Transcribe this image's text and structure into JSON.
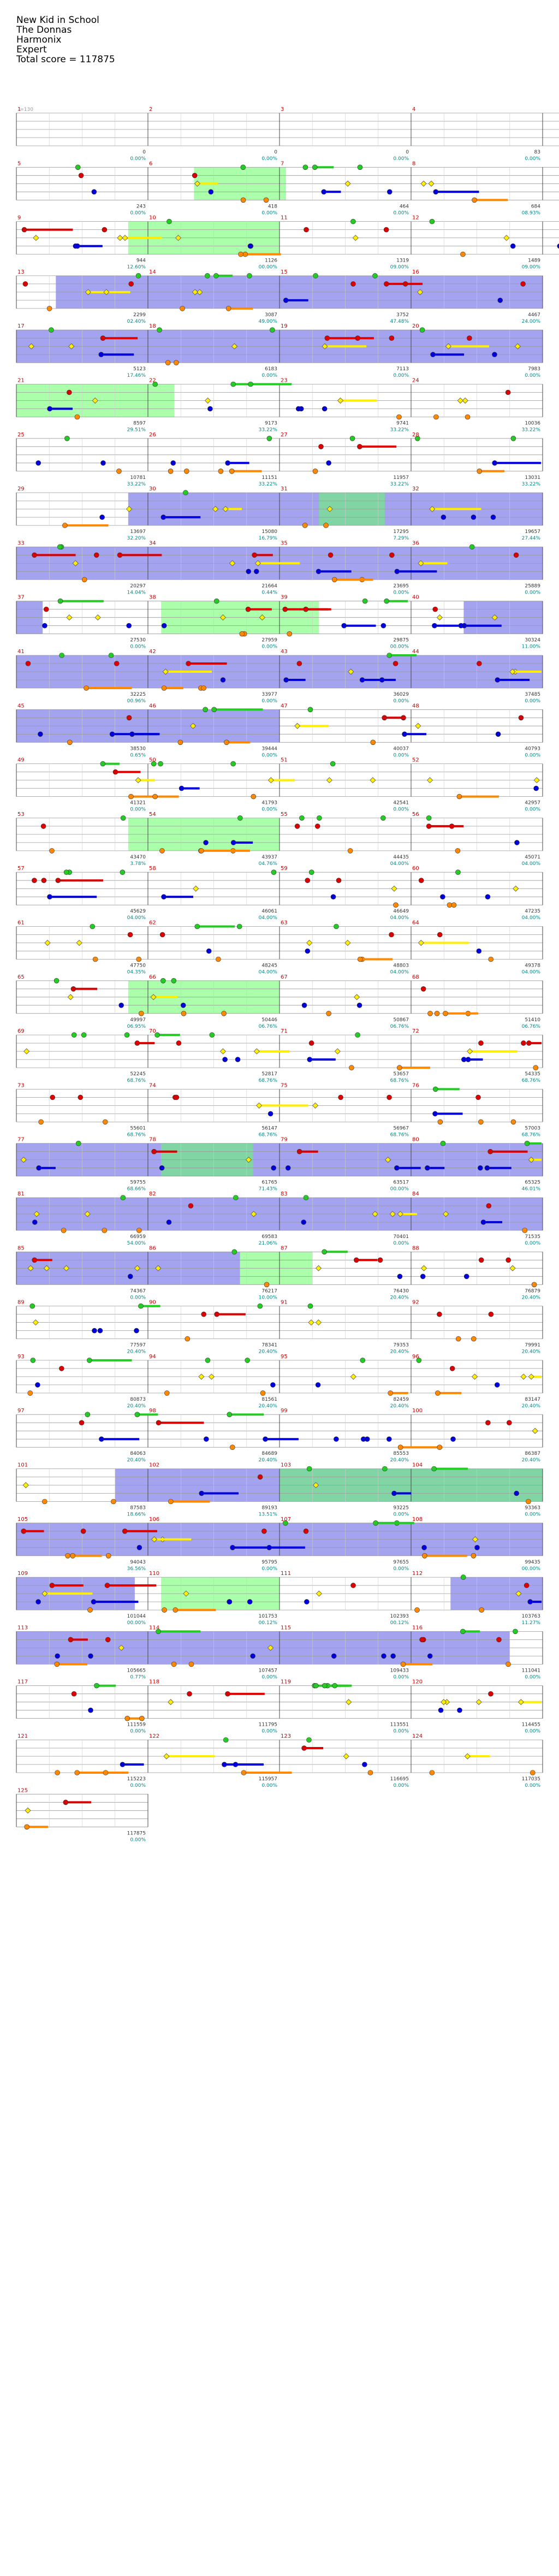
{
  "header": {
    "song_title": "New Kid in School",
    "artist": "The Donnas",
    "game": "Harmonix",
    "difficulty": "Expert",
    "total_score": "Total score = 117875"
  },
  "tempo_label": "♩=130",
  "colors": {
    "green": "#22cc22",
    "red": "#dd0000",
    "yellow": "#ffee00",
    "blue": "#0000dd",
    "orange": "#ff8800",
    "overdrive": "#3333dd",
    "solo": "#66ff66",
    "measure_number": "#cc0000",
    "score_text": "#008800",
    "percent_text": "#008888",
    "gray_text": "#999999"
  },
  "icons": [
    "star-power-note-icon",
    "gem-note-icon",
    "sustain-bar"
  ],
  "measures": [
    {
      "n": "1",
      "score": "0",
      "pct": "0.00%",
      "notes": []
    },
    {
      "n": "2",
      "score": "0",
      "pct": "0.00%",
      "notes": []
    },
    {
      "n": "3",
      "score": "0",
      "pct": "0.00%",
      "notes": []
    },
    {
      "n": "4",
      "score": "83",
      "pct": "0.00%",
      "notes": []
    },
    {
      "n": "",
      "score": "170",
      "pct": "0.00%",
      "notes": []
    },
    {
      "n": "5",
      "score": "243",
      "pct": "0.00%",
      "notes": []
    },
    {
      "n": "6",
      "score": "418",
      "pct": "0.00%",
      "notes": []
    },
    {
      "n": "7",
      "score": "464",
      "pct": "0.00%",
      "notes": []
    },
    {
      "n": "8",
      "score": "684",
      "pct": "08.93%",
      "notes": []
    },
    {
      "n": "",
      "score": "758",
      "pct": "09.90%",
      "notes": []
    },
    {
      "n": "9",
      "score": "944",
      "pct": "12.60%",
      "notes": []
    },
    {
      "n": "10",
      "score": "1126",
      "pct": "00.00%",
      "notes": []
    },
    {
      "n": "11",
      "score": "1319",
      "pct": "09.00%",
      "notes": []
    },
    {
      "n": "12",
      "score": "1489",
      "pct": "09.00%",
      "notes": []
    },
    {
      "n": "",
      "score": "1738",
      "pct": "07.00%",
      "notes": []
    },
    {
      "n": "13",
      "score": "2299",
      "pct": "02.40%",
      "notes": []
    },
    {
      "n": "14",
      "score": "3087",
      "pct": "49.00%",
      "notes": []
    },
    {
      "n": "15",
      "score": "3752",
      "pct": "47.48%",
      "notes": []
    },
    {
      "n": "16",
      "score": "4467",
      "pct": "24.00%",
      "notes": []
    },
    {
      "n": "17",
      "score": "5123",
      "pct": "17.46%",
      "notes": []
    },
    {
      "n": "18",
      "score": "6183",
      "pct": "0.00%",
      "notes": []
    },
    {
      "n": "19",
      "score": "7113",
      "pct": "0.00%",
      "notes": []
    },
    {
      "n": "20",
      "score": "7983",
      "pct": "0.00%",
      "notes": []
    },
    {
      "n": "21",
      "score": "8597",
      "pct": "29.51%",
      "notes": []
    },
    {
      "n": "22",
      "score": "9173",
      "pct": "33.22%",
      "notes": []
    },
    {
      "n": "23",
      "score": "9741",
      "pct": "33.22%",
      "notes": []
    },
    {
      "n": "24",
      "score": "10036",
      "pct": "33.22%",
      "notes": []
    },
    {
      "n": "25",
      "score": "10781",
      "pct": "33.22%",
      "notes": []
    },
    {
      "n": "26",
      "score": "11151",
      "pct": "33.22%",
      "notes": []
    },
    {
      "n": "27",
      "score": "11957",
      "pct": "33.22%",
      "notes": []
    },
    {
      "n": "28",
      "score": "13031",
      "pct": "33.22%",
      "notes": []
    },
    {
      "n": "29",
      "score": "13697",
      "pct": "32.20%",
      "notes": []
    },
    {
      "n": "30",
      "score": "15080",
      "pct": "16.79%",
      "notes": []
    },
    {
      "n": "31",
      "score": "17295",
      "pct": "7.29%",
      "notes": []
    },
    {
      "n": "32",
      "score": "19657",
      "pct": "27.44%",
      "notes": []
    },
    {
      "n": "33",
      "score": "20297",
      "pct": "14.04%",
      "notes": []
    },
    {
      "n": "34",
      "score": "21664",
      "pct": "0.44%",
      "notes": []
    },
    {
      "n": "35",
      "score": "23695",
      "pct": "0.00%",
      "notes": []
    },
    {
      "n": "36",
      "score": "25889",
      "pct": "0.00%",
      "notes": []
    },
    {
      "n": "37",
      "score": "27530",
      "pct": "0.00%",
      "notes": []
    },
    {
      "n": "38",
      "score": "27959",
      "pct": "0.00%",
      "notes": []
    },
    {
      "n": "39",
      "score": "29875",
      "pct": "00.00%",
      "notes": []
    },
    {
      "n": "40",
      "score": "30324",
      "pct": "11.00%",
      "notes": []
    },
    {
      "n": "41",
      "score": "32225",
      "pct": "00.96%",
      "notes": []
    },
    {
      "n": "42",
      "score": "33977",
      "pct": "0.00%",
      "notes": []
    },
    {
      "n": "43",
      "score": "36029",
      "pct": "0.00%",
      "notes": []
    },
    {
      "n": "44",
      "score": "37485",
      "pct": "0.00%",
      "notes": []
    },
    {
      "n": "45",
      "score": "38530",
      "pct": "0.65%",
      "notes": []
    },
    {
      "n": "46",
      "score": "39444",
      "pct": "0.00%",
      "notes": []
    },
    {
      "n": "47",
      "score": "40037",
      "pct": "0.00%",
      "notes": []
    },
    {
      "n": "48",
      "score": "40793",
      "pct": "0.00%",
      "notes": []
    },
    {
      "n": "49",
      "score": "41321",
      "pct": "0.00%",
      "notes": []
    },
    {
      "n": "50",
      "score": "41793",
      "pct": "0.00%",
      "notes": []
    },
    {
      "n": "51",
      "score": "42541",
      "pct": "0.00%",
      "notes": []
    },
    {
      "n": "52",
      "score": "42957",
      "pct": "0.00%",
      "notes": []
    },
    {
      "n": "53",
      "score": "43470",
      "pct": "3.78%",
      "notes": []
    },
    {
      "n": "54",
      "score": "43937",
      "pct": "04.76%",
      "notes": []
    },
    {
      "n": "55",
      "score": "44435",
      "pct": "04.00%",
      "notes": []
    },
    {
      "n": "56",
      "score": "45071",
      "pct": "04.00%",
      "notes": []
    },
    {
      "n": "57",
      "score": "45629",
      "pct": "04.00%",
      "notes": []
    },
    {
      "n": "58",
      "score": "46061",
      "pct": "04.00%",
      "notes": []
    },
    {
      "n": "59",
      "score": "46649",
      "pct": "04.00%",
      "notes": []
    },
    {
      "n": "60",
      "score": "47235",
      "pct": "04.00%",
      "notes": []
    },
    {
      "n": "61",
      "score": "47750",
      "pct": "04.35%",
      "notes": []
    },
    {
      "n": "62",
      "score": "48245",
      "pct": "04.00%",
      "notes": []
    },
    {
      "n": "63",
      "score": "48803",
      "pct": "04.00%",
      "notes": []
    },
    {
      "n": "64",
      "score": "49378",
      "pct": "04.00%",
      "notes": []
    },
    {
      "n": "65",
      "score": "49997",
      "pct": "06.95%",
      "notes": []
    },
    {
      "n": "66",
      "score": "50446",
      "pct": "06.76%",
      "notes": []
    },
    {
      "n": "67",
      "score": "50867",
      "pct": "06.76%",
      "notes": []
    },
    {
      "n": "68",
      "score": "51410",
      "pct": "06.76%",
      "notes": []
    },
    {
      "n": "69",
      "score": "52245",
      "pct": "68.76%",
      "notes": []
    },
    {
      "n": "70",
      "score": "52817",
      "pct": "68.76%",
      "notes": []
    },
    {
      "n": "71",
      "score": "53657",
      "pct": "68.76%",
      "notes": []
    },
    {
      "n": "72",
      "score": "54335",
      "pct": "68.76%",
      "notes": []
    },
    {
      "n": "73",
      "score": "55601",
      "pct": "68.76%",
      "notes": []
    },
    {
      "n": "74",
      "score": "56147",
      "pct": "68.76%",
      "notes": []
    },
    {
      "n": "75",
      "score": "56967",
      "pct": "68.76%",
      "notes": []
    },
    {
      "n": "76",
      "score": "57003",
      "pct": "68.76%",
      "notes": []
    },
    {
      "n": "77",
      "score": "59755",
      "pct": "68.66%",
      "notes": []
    },
    {
      "n": "78",
      "score": "61765",
      "pct": "71.43%",
      "notes": []
    },
    {
      "n": "79",
      "score": "63517",
      "pct": "00.00%",
      "notes": []
    },
    {
      "n": "80",
      "score": "65325",
      "pct": "46.01%",
      "notes": []
    },
    {
      "n": "81",
      "score": "66959",
      "pct": "54.00%",
      "notes": []
    },
    {
      "n": "82",
      "score": "69583",
      "pct": "21.06%",
      "notes": []
    },
    {
      "n": "83",
      "score": "70401",
      "pct": "0.00%",
      "notes": []
    },
    {
      "n": "84",
      "score": "71535",
      "pct": "0.00%",
      "notes": []
    },
    {
      "n": "85",
      "score": "74367",
      "pct": "0.00%",
      "notes": []
    },
    {
      "n": "86",
      "score": "76217",
      "pct": "10.00%",
      "notes": []
    },
    {
      "n": "87",
      "score": "76430",
      "pct": "20.40%",
      "notes": []
    },
    {
      "n": "88",
      "score": "76879",
      "pct": "20.40%",
      "notes": []
    },
    {
      "n": "89",
      "score": "77597",
      "pct": "20.40%",
      "notes": []
    },
    {
      "n": "90",
      "score": "78341",
      "pct": "20.40%",
      "notes": []
    },
    {
      "n": "91",
      "score": "79353",
      "pct": "20.40%",
      "notes": []
    },
    {
      "n": "92",
      "score": "79991",
      "pct": "20.40%",
      "notes": []
    },
    {
      "n": "93",
      "score": "80873",
      "pct": "20.40%",
      "notes": []
    },
    {
      "n": "94",
      "score": "81561",
      "pct": "20.40%",
      "notes": []
    },
    {
      "n": "95",
      "score": "82459",
      "pct": "20.40%",
      "notes": []
    },
    {
      "n": "96",
      "score": "83147",
      "pct": "20.40%",
      "notes": []
    },
    {
      "n": "97",
      "score": "84063",
      "pct": "20.40%",
      "notes": []
    },
    {
      "n": "98",
      "score": "84689",
      "pct": "20.40%",
      "notes": []
    },
    {
      "n": "99",
      "score": "85553",
      "pct": "20.40%",
      "notes": []
    },
    {
      "n": "100",
      "score": "86387",
      "pct": "20.40%",
      "notes": []
    },
    {
      "n": "101",
      "score": "87583",
      "pct": "18.66%",
      "notes": []
    },
    {
      "n": "102",
      "score": "89193",
      "pct": "13.51%",
      "notes": []
    },
    {
      "n": "103",
      "score": "93225",
      "pct": "0.00%",
      "notes": []
    },
    {
      "n": "104",
      "score": "93363",
      "pct": "0.00%",
      "notes": []
    },
    {
      "n": "105",
      "score": "94043",
      "pct": "36.56%",
      "notes": []
    },
    {
      "n": "106",
      "score": "95795",
      "pct": "0.00%",
      "notes": []
    },
    {
      "n": "107",
      "score": "97655",
      "pct": "0.00%",
      "notes": []
    },
    {
      "n": "108",
      "score": "99435",
      "pct": "00.00%",
      "notes": []
    },
    {
      "n": "109",
      "score": "101044",
      "pct": "00.00%",
      "notes": []
    },
    {
      "n": "110",
      "score": "101753",
      "pct": "00.12%",
      "notes": []
    },
    {
      "n": "111",
      "score": "102393",
      "pct": "00.12%",
      "notes": []
    },
    {
      "n": "112",
      "score": "103763",
      "pct": "11.27%",
      "notes": []
    },
    {
      "n": "113",
      "score": "105665",
      "pct": "0.77%",
      "notes": []
    },
    {
      "n": "114",
      "score": "107457",
      "pct": "0.00%",
      "notes": []
    },
    {
      "n": "115",
      "score": "109433",
      "pct": "0.00%",
      "notes": []
    },
    {
      "n": "116",
      "score": "111041",
      "pct": "0.00%",
      "notes": []
    },
    {
      "n": "117",
      "score": "111559",
      "pct": "0.00%",
      "notes": []
    },
    {
      "n": "118",
      "score": "111795",
      "pct": "0.00%",
      "notes": []
    },
    {
      "n": "119",
      "score": "113551",
      "pct": "0.00%",
      "notes": []
    },
    {
      "n": "120",
      "score": "114455",
      "pct": "0.00%",
      "notes": []
    },
    {
      "n": "121",
      "score": "115223",
      "pct": "0.00%",
      "notes": []
    },
    {
      "n": "122",
      "score": "115957",
      "pct": "0.00%",
      "notes": []
    },
    {
      "n": "123",
      "score": "116695",
      "pct": "0.00%",
      "notes": []
    },
    {
      "n": "124",
      "score": "117035",
      "pct": "0.00%",
      "notes": []
    },
    {
      "n": "125",
      "score": "117875",
      "pct": "0.00%",
      "notes": []
    }
  ],
  "rows": [
    {
      "start": 0,
      "count": 5,
      "od": [],
      "solo": []
    },
    {
      "start": 5,
      "count": 5,
      "od": [],
      "solo": [
        [
          1.35,
          2.05
        ]
      ]
    },
    {
      "start": 10,
      "count": 5,
      "od": [],
      "solo": [
        [
          0.85,
          2.0
        ]
      ]
    },
    {
      "start": 15,
      "count": 4,
      "od": [
        [
          0.3,
          4.0
        ]
      ],
      "solo": []
    },
    {
      "start": 19,
      "count": 4,
      "od": [
        [
          0,
          4.0
        ]
      ],
      "solo": []
    },
    {
      "start": 23,
      "count": 4,
      "od": [],
      "solo": [
        [
          0,
          1.2
        ]
      ]
    },
    {
      "start": 27,
      "count": 4,
      "od": [],
      "solo": []
    },
    {
      "start": 31,
      "count": 4,
      "od": [
        [
          0.85,
          4.0
        ]
      ],
      "solo": [
        [
          2.3,
          2.8
        ]
      ]
    },
    {
      "start": 35,
      "count": 4,
      "od": [
        [
          0,
          4.0
        ]
      ],
      "solo": []
    },
    {
      "start": 39,
      "count": 4,
      "od": [
        [
          0,
          0.2
        ],
        [
          3.4,
          4.0
        ]
      ],
      "solo": [
        [
          1.1,
          2.3
        ]
      ]
    },
    {
      "start": 43,
      "count": 4,
      "od": [
        [
          0,
          4.0
        ]
      ],
      "solo": []
    },
    {
      "start": 47,
      "count": 4,
      "od": [
        [
          0,
          2.0
        ]
      ],
      "solo": []
    },
    {
      "start": 51,
      "count": 4,
      "od": [],
      "solo": []
    },
    {
      "start": 55,
      "count": 4,
      "od": [],
      "solo": [
        [
          0.85,
          2.0
        ]
      ]
    },
    {
      "start": 59,
      "count": 4,
      "od": [],
      "solo": []
    },
    {
      "start": 63,
      "count": 4,
      "od": [],
      "solo": []
    },
    {
      "start": 67,
      "count": 4,
      "od": [],
      "solo": [
        [
          0.85,
          2.0
        ]
      ]
    },
    {
      "start": 71,
      "count": 4,
      "od": [],
      "solo": []
    },
    {
      "start": 75,
      "count": 4,
      "od": [],
      "solo": []
    },
    {
      "start": 79,
      "count": 4,
      "od": [
        [
          0,
          4.0
        ]
      ],
      "solo": [
        [
          1.1,
          1.8
        ]
      ]
    },
    {
      "start": 83,
      "count": 4,
      "od": [
        [
          0,
          4.0
        ]
      ],
      "solo": []
    },
    {
      "start": 87,
      "count": 4,
      "od": [
        [
          0,
          1.7
        ]
      ],
      "solo": [
        [
          1.7,
          2.25
        ]
      ]
    },
    {
      "start": 91,
      "count": 4,
      "od": [],
      "solo": []
    },
    {
      "start": 95,
      "count": 4,
      "od": [],
      "solo": []
    },
    {
      "start": 99,
      "count": 4,
      "od": [],
      "solo": []
    },
    {
      "start": 103,
      "count": 4,
      "od": [
        [
          0.75,
          4.0
        ]
      ],
      "solo": [
        [
          2.0,
          4.0
        ]
      ]
    },
    {
      "start": 107,
      "count": 4,
      "od": [
        [
          0,
          4.0
        ]
      ],
      "solo": []
    },
    {
      "start": 111,
      "count": 4,
      "od": [
        [
          0,
          0.9
        ],
        [
          3.3,
          4.0
        ]
      ],
      "solo": [
        [
          1.1,
          2.0
        ]
      ]
    },
    {
      "start": 115,
      "count": 4,
      "od": [
        [
          0,
          3.75
        ]
      ],
      "solo": []
    },
    {
      "start": 119,
      "count": 4,
      "od": [],
      "solo": []
    },
    {
      "start": 123,
      "count": 4,
      "od": [],
      "solo": []
    },
    {
      "start": 127,
      "count": 1,
      "od": [],
      "solo": []
    }
  ]
}
